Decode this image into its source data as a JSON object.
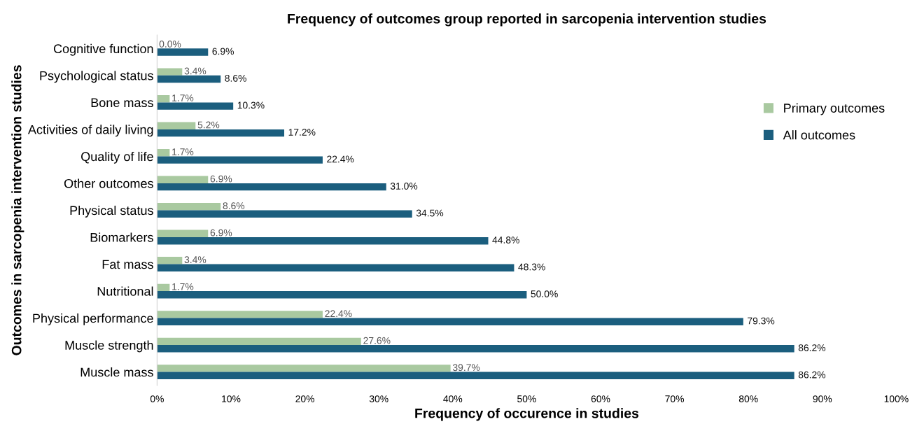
{
  "chart_data": {
    "type": "bar",
    "orientation": "horizontal",
    "title": "Frequency of outcomes group reported in sarcopenia intervention studies",
    "xlabel": "Frequency of occurence in studies",
    "ylabel": "Outcomes in sarcopenia intervention studies",
    "categories": [
      "Cognitive function",
      "Psychological status",
      "Bone mass",
      "Activities of daily living",
      "Quality of life",
      "Other outcomes",
      "Physical status",
      "Biomarkers",
      "Fat mass",
      "Nutritional",
      "Physical performance",
      "Muscle strength",
      "Muscle mass"
    ],
    "series": [
      {
        "name": "Primary outcomes",
        "color": "#a9c9a0",
        "values": [
          0.0,
          3.4,
          1.7,
          5.2,
          1.7,
          6.9,
          8.6,
          6.9,
          3.4,
          1.7,
          22.4,
          27.6,
          39.7
        ],
        "value_labels": [
          "0.0%",
          "3.4%",
          "1.7%",
          "5.2%",
          "1.7%",
          "6.9%",
          "8.6%",
          "6.9%",
          "3.4%",
          "1.7%",
          "22.4%",
          "27.6%",
          "39.7%"
        ]
      },
      {
        "name": "All outcomes",
        "color": "#1b5e7e",
        "values": [
          6.9,
          8.6,
          10.3,
          17.2,
          22.4,
          31.0,
          34.5,
          44.8,
          48.3,
          50.0,
          79.3,
          86.2,
          86.2
        ],
        "value_labels": [
          "6.9%",
          "8.6%",
          "10.3%",
          "17.2%",
          "22.4%",
          "31.0%",
          "34.5%",
          "44.8%",
          "48.3%",
          "50.0%",
          "79.3%",
          "86.2%",
          "86.2%"
        ]
      }
    ],
    "xlim": [
      0,
      100
    ],
    "xticks": [
      {
        "value": 0,
        "label": "0%"
      },
      {
        "value": 10,
        "label": "10%"
      },
      {
        "value": 20,
        "label": "20%"
      },
      {
        "value": 30,
        "label": "30%"
      },
      {
        "value": 40,
        "label": "40%"
      },
      {
        "value": 50,
        "label": "50%"
      },
      {
        "value": 60,
        "label": "60%"
      },
      {
        "value": 70,
        "label": "70%"
      },
      {
        "value": 80,
        "label": "80%"
      },
      {
        "value": 90,
        "label": "90%"
      },
      {
        "value": 100,
        "label": "100%"
      }
    ],
    "grid": false,
    "legend": "right"
  }
}
